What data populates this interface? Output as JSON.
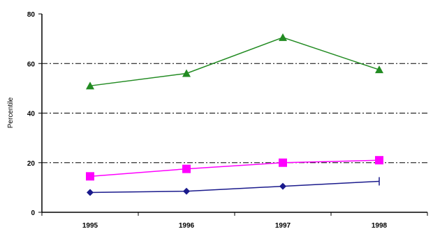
{
  "chart_data": {
    "type": "line",
    "title": "",
    "xlabel": "",
    "ylabel": "Percentile",
    "ylim": [
      0,
      80
    ],
    "yticks": [
      "0",
      "20",
      "40",
      "60",
      "80"
    ],
    "categories": [
      "1995",
      "1996",
      "1997",
      "1998"
    ],
    "grid": "dash-dot horizontal lines at 20, 40, 60",
    "legend": "none",
    "series": [
      {
        "color": "#228B22",
        "marker": "triangle",
        "values": [
          51,
          56,
          70.5,
          57.5
        ]
      },
      {
        "color": "#FF00FF",
        "marker": "square",
        "values": [
          14.5,
          17.5,
          20,
          21
        ]
      },
      {
        "color": "#1A1A8C",
        "marker": "diamond",
        "values": [
          8,
          8.5,
          10.5,
          12.5
        ]
      }
    ]
  }
}
